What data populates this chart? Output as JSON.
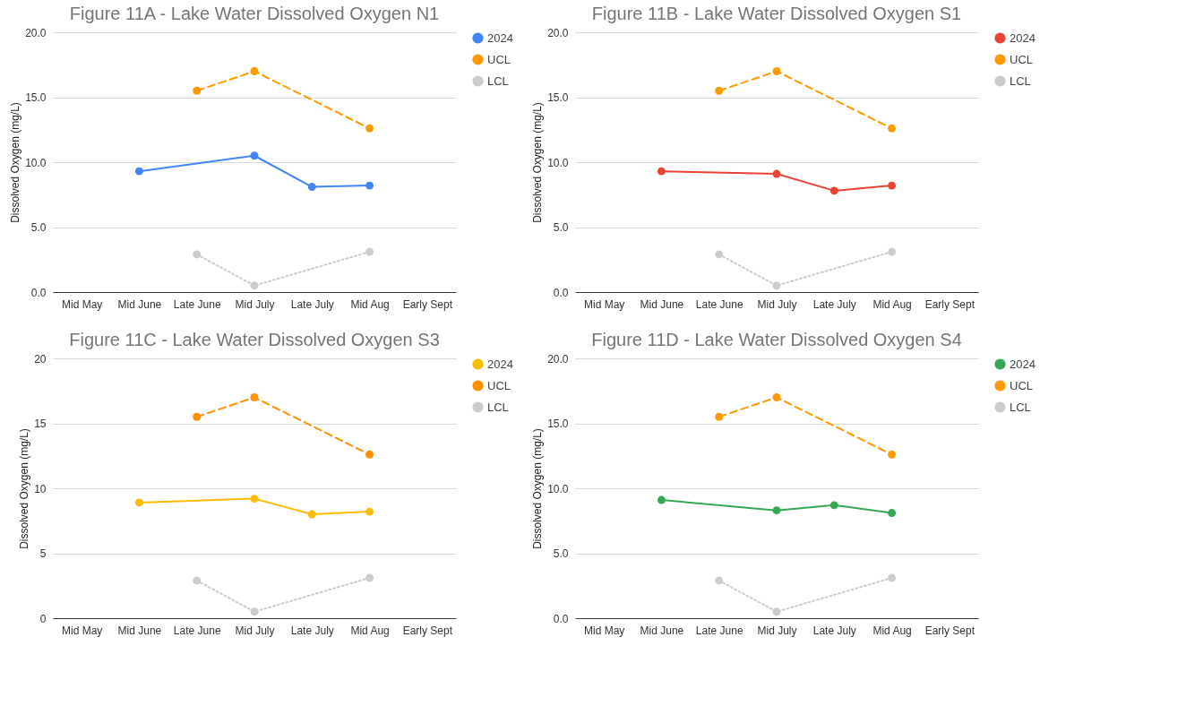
{
  "chart_data": [
    {
      "type": "line",
      "title": "Figure 11A - Lake Water Dissolved Oxygen N1",
      "ylabel": "Dissolved Oxygen (mg/L)",
      "categories": [
        "Mid May",
        "Mid June",
        "Late June",
        "Mid July",
        "Late July",
        "Mid Aug",
        "Early Sept"
      ],
      "ylim": [
        0,
        20
      ],
      "yticks": [
        {
          "value": 0,
          "label": "0.0"
        },
        {
          "value": 5,
          "label": "5.0"
        },
        {
          "value": 10,
          "label": "10.0"
        },
        {
          "value": 15,
          "label": "15.0"
        },
        {
          "value": 20,
          "label": "20.0"
        }
      ],
      "grid": "y",
      "legend": "right",
      "marker": "circle",
      "series": [
        {
          "name": "2024",
          "color": "#4285f4",
          "line_style": "solid",
          "values": [
            null,
            9.3,
            null,
            10.5,
            8.1,
            8.2,
            null
          ]
        },
        {
          "name": "UCL",
          "color": "#ff9900",
          "line_style": "dashed",
          "values": [
            null,
            null,
            15.5,
            17.0,
            null,
            12.6,
            null
          ]
        },
        {
          "name": "LCL",
          "color": "#cccccc",
          "line_style": "dotted",
          "values": [
            null,
            null,
            2.9,
            0.5,
            null,
            3.1,
            null
          ]
        }
      ]
    },
    {
      "type": "line",
      "title": "Figure 11B - Lake Water Dissolved Oxygen S1",
      "ylabel": "Dissolved Oxygen (mg/L)",
      "categories": [
        "Mid May",
        "Mid June",
        "Late June",
        "Mid July",
        "Late July",
        "Mid Aug",
        "Early Sept"
      ],
      "ylim": [
        0,
        20
      ],
      "yticks": [
        {
          "value": 0,
          "label": "0.0"
        },
        {
          "value": 5,
          "label": "5.0"
        },
        {
          "value": 10,
          "label": "10.0"
        },
        {
          "value": 15,
          "label": "15.0"
        },
        {
          "value": 20,
          "label": "20.0"
        }
      ],
      "grid": "y",
      "legend": "right",
      "marker": "circle",
      "series": [
        {
          "name": "2024",
          "color": "#ea4335",
          "line_style": "solid",
          "values": [
            null,
            9.3,
            null,
            9.1,
            7.8,
            8.2,
            null
          ]
        },
        {
          "name": "UCL",
          "color": "#ff9900",
          "line_style": "dashed",
          "values": [
            null,
            null,
            15.5,
            17.0,
            null,
            12.6,
            null
          ]
        },
        {
          "name": "LCL",
          "color": "#cccccc",
          "line_style": "dotted",
          "values": [
            null,
            null,
            2.9,
            0.5,
            null,
            3.1,
            null
          ]
        }
      ]
    },
    {
      "type": "line",
      "title": "Figure 11C - Lake Water Dissolved Oxygen S3",
      "ylabel": "Dissolved Oxygen (mg/L)",
      "categories": [
        "Mid May",
        "Mid June",
        "Late June",
        "Mid July",
        "Late July",
        "Mid Aug",
        "Early Sept"
      ],
      "ylim": [
        0,
        20
      ],
      "yticks": [
        0,
        5,
        10,
        15,
        20
      ],
      "grid": "y",
      "legend": "right",
      "marker": "circle",
      "series": [
        {
          "name": "2024",
          "color": "#fbbc04",
          "line_style": "solid",
          "values": [
            null,
            8.9,
            null,
            9.2,
            8.0,
            8.2,
            null
          ]
        },
        {
          "name": "UCL",
          "color": "#ff9100",
          "line_style": "dashed",
          "values": [
            null,
            null,
            15.5,
            17.0,
            null,
            12.6,
            null
          ]
        },
        {
          "name": "LCL",
          "color": "#cccccc",
          "line_style": "dotted",
          "values": [
            null,
            null,
            2.9,
            0.5,
            null,
            3.1,
            null
          ]
        }
      ]
    },
    {
      "type": "line",
      "title": "Figure 11D - Lake Water Dissolved Oxygen S4",
      "ylabel": "Dissolved Oxygen (mg/L)",
      "categories": [
        "Mid May",
        "Mid June",
        "Late June",
        "Mid July",
        "Late July",
        "Mid Aug",
        "Early Sept"
      ],
      "ylim": [
        0,
        20
      ],
      "yticks": [
        {
          "value": 0,
          "label": "0.0"
        },
        {
          "value": 5,
          "label": "5.0"
        },
        {
          "value": 10,
          "label": "10.0"
        },
        {
          "value": 15,
          "label": "15.0"
        },
        {
          "value": 20,
          "label": "20.0"
        }
      ],
      "grid": "y",
      "legend": "right",
      "marker": "circle",
      "series": [
        {
          "name": "2024",
          "color": "#34a853",
          "line_style": "solid",
          "values": [
            null,
            9.1,
            null,
            8.3,
            8.7,
            8.1,
            null
          ]
        },
        {
          "name": "UCL",
          "color": "#ff9900",
          "line_style": "dashed",
          "values": [
            null,
            null,
            15.5,
            17.0,
            null,
            12.6,
            null
          ]
        },
        {
          "name": "LCL",
          "color": "#cccccc",
          "line_style": "dotted",
          "values": [
            null,
            null,
            2.9,
            0.5,
            null,
            3.1,
            null
          ]
        }
      ]
    }
  ]
}
